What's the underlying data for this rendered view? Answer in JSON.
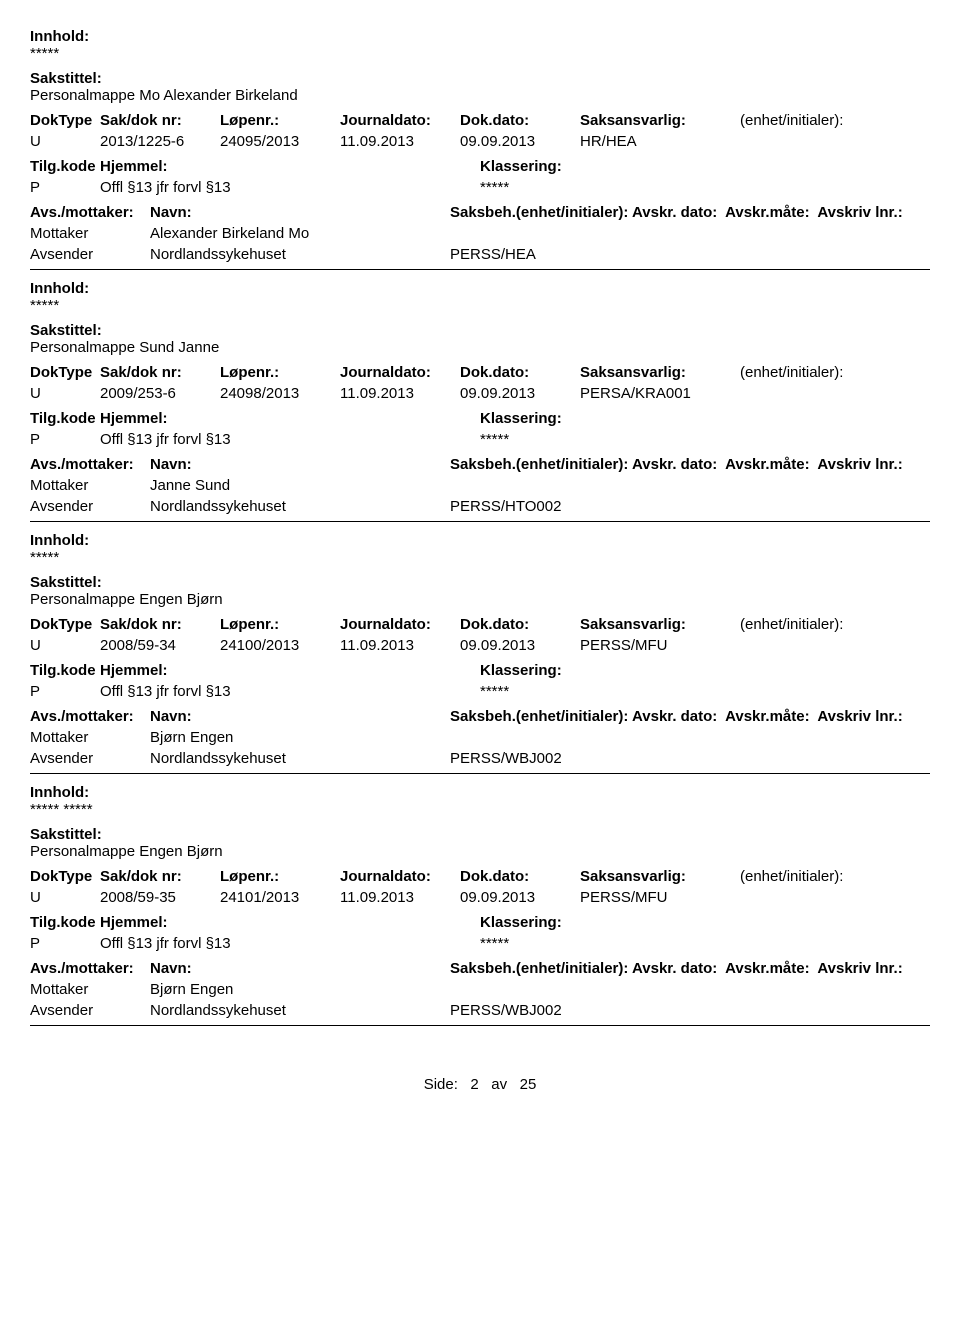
{
  "labels": {
    "innhold": "Innhold:",
    "sakstittel": "Sakstittel:",
    "doktype": "DokType",
    "sakdoknr": "Sak/dok nr:",
    "lopenr": "Løpenr.:",
    "journaldato": "Journaldato:",
    "dokdato": "Dok.dato:",
    "saksansvarlig": "Saksansvarlig:",
    "enhetinitialer": "(enhet/initialer):",
    "tilgkode": "Tilg.kode",
    "hjemmel": "Hjemmel:",
    "klassering": "Klassering:",
    "avsmottaker": "Avs./mottaker:",
    "navn": "Navn:",
    "saksbeh": "Saksbeh.(enhet/initialer):",
    "avskrdato": "Avskr. dato:",
    "avskrmate": "Avskr.måte:",
    "avskrivlnr": "Avskriv lnr.:",
    "mottaker": "Mottaker",
    "avsender": "Avsender"
  },
  "footer": {
    "side": "Side:",
    "page": "2",
    "av": "av",
    "total": "25"
  },
  "records": [
    {
      "innhold_text": "*****",
      "sakstittel_text": "Personalmappe Mo Alexander Birkeland",
      "doktype": "U",
      "sakdoknr": "2013/1225-6",
      "lopenr": "24095/2013",
      "journaldato": "11.09.2013",
      "dokdato": "09.09.2013",
      "saksansvarlig": "HR/HEA",
      "tilgkode": "P",
      "hjemmel": "Offl §13 jfr forvl §13",
      "klassering": "*****",
      "mottaker_navn": "Alexander Birkeland Mo",
      "avsender_navn": "Nordlandssykehuset",
      "saksbeh_val": "PERSS/HEA"
    },
    {
      "innhold_text": "*****",
      "sakstittel_text": "Personalmappe Sund Janne",
      "doktype": "U",
      "sakdoknr": "2009/253-6",
      "lopenr": "24098/2013",
      "journaldato": "11.09.2013",
      "dokdato": "09.09.2013",
      "saksansvarlig": "PERSA/KRA001",
      "tilgkode": "P",
      "hjemmel": "Offl §13 jfr forvl §13",
      "klassering": "*****",
      "mottaker_navn": "Janne Sund",
      "avsender_navn": "Nordlandssykehuset",
      "saksbeh_val": "PERSS/HTO002"
    },
    {
      "innhold_text": "*****",
      "sakstittel_text": "Personalmappe Engen Bjørn",
      "doktype": "U",
      "sakdoknr": "2008/59-34",
      "lopenr": "24100/2013",
      "journaldato": "11.09.2013",
      "dokdato": "09.09.2013",
      "saksansvarlig": "PERSS/MFU",
      "tilgkode": "P",
      "hjemmel": "Offl §13 jfr forvl §13",
      "klassering": "*****",
      "mottaker_navn": "Bjørn Engen",
      "avsender_navn": "Nordlandssykehuset",
      "saksbeh_val": "PERSS/WBJ002"
    },
    {
      "innhold_text": "***** *****",
      "sakstittel_text": "Personalmappe Engen Bjørn",
      "doktype": "U",
      "sakdoknr": "2008/59-35",
      "lopenr": "24101/2013",
      "journaldato": "11.09.2013",
      "dokdato": "09.09.2013",
      "saksansvarlig": "PERSS/MFU",
      "tilgkode": "P",
      "hjemmel": "Offl §13 jfr forvl §13",
      "klassering": "*****",
      "mottaker_navn": "Bjørn Engen",
      "avsender_navn": "Nordlandssykehuset",
      "saksbeh_val": "PERSS/WBJ002"
    }
  ]
}
